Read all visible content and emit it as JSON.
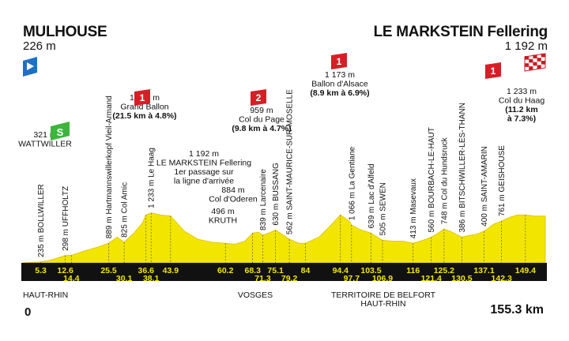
{
  "header": {
    "start_name": "MULHOUSE",
    "start_alt": "226 m",
    "finish_name": "LE MARKSTEIN Fellering",
    "finish_alt": "1 192 m"
  },
  "distance": {
    "start": "0",
    "end": "155.3 km"
  },
  "colors": {
    "profile_fill": "#f2e600",
    "profile_stroke": "#e3c800",
    "band": "#111111",
    "climb_flag": "#d51f26",
    "sprint_flag": "#3db53d",
    "start_marker": "#1f6fc4"
  },
  "chart_data": {
    "type": "area",
    "x_unit": "km",
    "y_unit": "m",
    "xlim": [
      0,
      155.3
    ],
    "profile": [
      [
        0,
        226
      ],
      [
        5.3,
        235
      ],
      [
        8,
        250
      ],
      [
        12.6,
        298
      ],
      [
        14.4,
        300
      ],
      [
        18,
        340
      ],
      [
        22,
        380
      ],
      [
        25.5,
        420
      ],
      [
        28,
        480
      ],
      [
        30.1,
        430
      ],
      [
        33,
        520
      ],
      [
        35.5,
        620
      ],
      [
        36.6,
        700
      ],
      [
        38.1,
        720
      ],
      [
        41,
        700
      ],
      [
        43.9,
        690
      ],
      [
        48,
        540
      ],
      [
        52,
        460
      ],
      [
        56,
        430
      ],
      [
        60.2,
        420
      ],
      [
        63,
        410
      ],
      [
        66,
        440
      ],
      [
        68.3,
        520
      ],
      [
        70,
        530
      ],
      [
        71.3,
        500
      ],
      [
        73,
        520
      ],
      [
        75.1,
        550
      ],
      [
        77,
        510
      ],
      [
        79.2,
        460
      ],
      [
        82,
        420
      ],
      [
        84,
        420
      ],
      [
        88,
        480
      ],
      [
        91,
        580
      ],
      [
        94.4,
        700
      ],
      [
        97,
        640
      ],
      [
        97.7,
        600
      ],
      [
        100,
        560
      ],
      [
        103.5,
        520
      ],
      [
        106.9,
        450
      ],
      [
        110,
        440
      ],
      [
        113,
        440
      ],
      [
        116,
        420
      ],
      [
        119,
        450
      ],
      [
        121.4,
        480
      ],
      [
        123,
        510
      ],
      [
        125.2,
        560
      ],
      [
        127,
        540
      ],
      [
        130.5,
        480
      ],
      [
        133,
        500
      ],
      [
        135,
        510
      ],
      [
        137.1,
        540
      ],
      [
        140,
        610
      ],
      [
        142.3,
        640
      ],
      [
        145,
        680
      ],
      [
        147,
        700
      ],
      [
        149.4,
        700
      ],
      [
        152,
        690
      ],
      [
        155.3,
        690
      ]
    ],
    "km_points": [
      {
        "km": 5.3,
        "text": "5.3",
        "row": 1
      },
      {
        "km": 12.6,
        "text": "12.6",
        "row": 1
      },
      {
        "km": 14.4,
        "text": "14.4",
        "row": 2
      },
      {
        "km": 25.5,
        "text": "25.5",
        "row": 1
      },
      {
        "km": 30.1,
        "text": "30.1",
        "row": 2
      },
      {
        "km": 36.6,
        "text": "36.6",
        "row": 1
      },
      {
        "km": 38.1,
        "text": "38.1",
        "row": 2
      },
      {
        "km": 43.9,
        "text": "43.9",
        "row": 1
      },
      {
        "km": 60.2,
        "text": "60.2",
        "row": 1
      },
      {
        "km": 68.3,
        "text": "68.3",
        "row": 1
      },
      {
        "km": 71.3,
        "text": "71.3",
        "row": 2
      },
      {
        "km": 75.1,
        "text": "75.1",
        "row": 1
      },
      {
        "km": 79.2,
        "text": "79.2",
        "row": 2
      },
      {
        "km": 84,
        "text": "84",
        "row": 1
      },
      {
        "km": 94.4,
        "text": "94.4",
        "row": 1
      },
      {
        "km": 97.7,
        "text": "97.7",
        "row": 2
      },
      {
        "km": 103.5,
        "text": "103.5",
        "row": 1
      },
      {
        "km": 106.9,
        "text": "106.9",
        "row": 2
      },
      {
        "km": 116,
        "text": "116",
        "row": 1
      },
      {
        "km": 121.4,
        "text": "121.4",
        "row": 2
      },
      {
        "km": 125.2,
        "text": "125.2",
        "row": 1
      },
      {
        "km": 130.5,
        "text": "130.5",
        "row": 2
      },
      {
        "km": 137.1,
        "text": "137.1",
        "row": 1
      },
      {
        "km": 142.3,
        "text": "142.3",
        "row": 2
      },
      {
        "km": 149.4,
        "text": "149.4",
        "row": 1
      }
    ],
    "vertical_labels": [
      {
        "km": 5.3,
        "text": "235 m BOLLWILLER"
      },
      {
        "km": 12.6,
        "text": "298 m UFFHOLTZ"
      },
      {
        "km": 25.5,
        "text": "889 m Hartmannswillerkopf Vieil-Armand"
      },
      {
        "km": 30.1,
        "text": "825 m Col Amic"
      },
      {
        "km": 38.1,
        "text": "1 233 m Le Haag"
      },
      {
        "km": 71.3,
        "text": "839 m Larcenaire"
      },
      {
        "km": 75.1,
        "text": "630 m BUSSANG"
      },
      {
        "km": 79.2,
        "text": "562 m SAINT-MAURICE-SUR-MOSELLE"
      },
      {
        "km": 97.7,
        "text": "1 066 m La Gentiane"
      },
      {
        "km": 103.5,
        "text": "639 m Lac d'Alfeld"
      },
      {
        "km": 106.9,
        "text": "505 m SEWEN"
      },
      {
        "km": 116,
        "text": "413 m Masevaux"
      },
      {
        "km": 121.4,
        "text": "560 m BOURBACH-LE-HAUT"
      },
      {
        "km": 125.2,
        "text": "748 m Col du Hundsruck"
      },
      {
        "km": 130.5,
        "text": "386 m BITSCHWILLER-LÈS-THANN"
      },
      {
        "km": 137.1,
        "text": "400 m SAINT-AMARIN"
      },
      {
        "km": 142.3,
        "text": "761 m GEISHOUSE"
      }
    ],
    "annotations": [
      {
        "km": 12.6,
        "lines": [
          "321 m",
          "WATTWILLER"
        ],
        "bold": []
      },
      {
        "km": 36.6,
        "lines": [
          "1 336 m",
          "Grand Ballon",
          "(21.5 km à 4.8%)"
        ],
        "bold": [
          2
        ],
        "flag": "1"
      },
      {
        "km": 43.9,
        "lines": [
          "1 192 m",
          "LE MARKSTEIN Fellering",
          "1er passage sur",
          "la ligne d'arrivée"
        ],
        "bold": []
      },
      {
        "km": 60.2,
        "lines": [
          "884 m",
          "Col d'Oderen"
        ],
        "bold": []
      },
      {
        "km": 63,
        "lines": [
          "496 m",
          "KRUTH"
        ],
        "bold": []
      },
      {
        "km": 68.3,
        "lines": [
          "959 m",
          "Col du Page",
          "(9.8 km à 4.7%)"
        ],
        "bold": [
          2
        ],
        "flag": "2"
      },
      {
        "km": 94.4,
        "lines": [
          "1 173 m",
          "Ballon d'Alsace",
          "(8.9 km à 6.9%)"
        ],
        "bold": [
          2
        ],
        "flag": "1"
      },
      {
        "km": 149.4,
        "lines": [
          "1 233 m",
          "Col du Haag",
          "(11.2 km",
          "à 7.3%)"
        ],
        "bold": [
          2,
          3
        ],
        "flag": "1"
      }
    ],
    "regions": [
      {
        "text": "HAUT-RHIN",
        "anchor": "start",
        "km": 0
      },
      {
        "text": "VOSGES",
        "anchor": "middle",
        "km": 71.3
      },
      {
        "text": "TERRITOIRE DE BELFORT",
        "anchor": "middle",
        "km": 106.9
      },
      {
        "text": "HAUT-RHIN",
        "anchor": "middle",
        "km": 106.9
      }
    ],
    "sprint": {
      "km": 12.6,
      "label": "S"
    },
    "climbs": [
      {
        "km": 36.6,
        "cat": "1"
      },
      {
        "km": 68.3,
        "cat": "2"
      },
      {
        "km": 94.4,
        "cat": "1"
      },
      {
        "km": 149.4,
        "cat": "1"
      }
    ]
  }
}
